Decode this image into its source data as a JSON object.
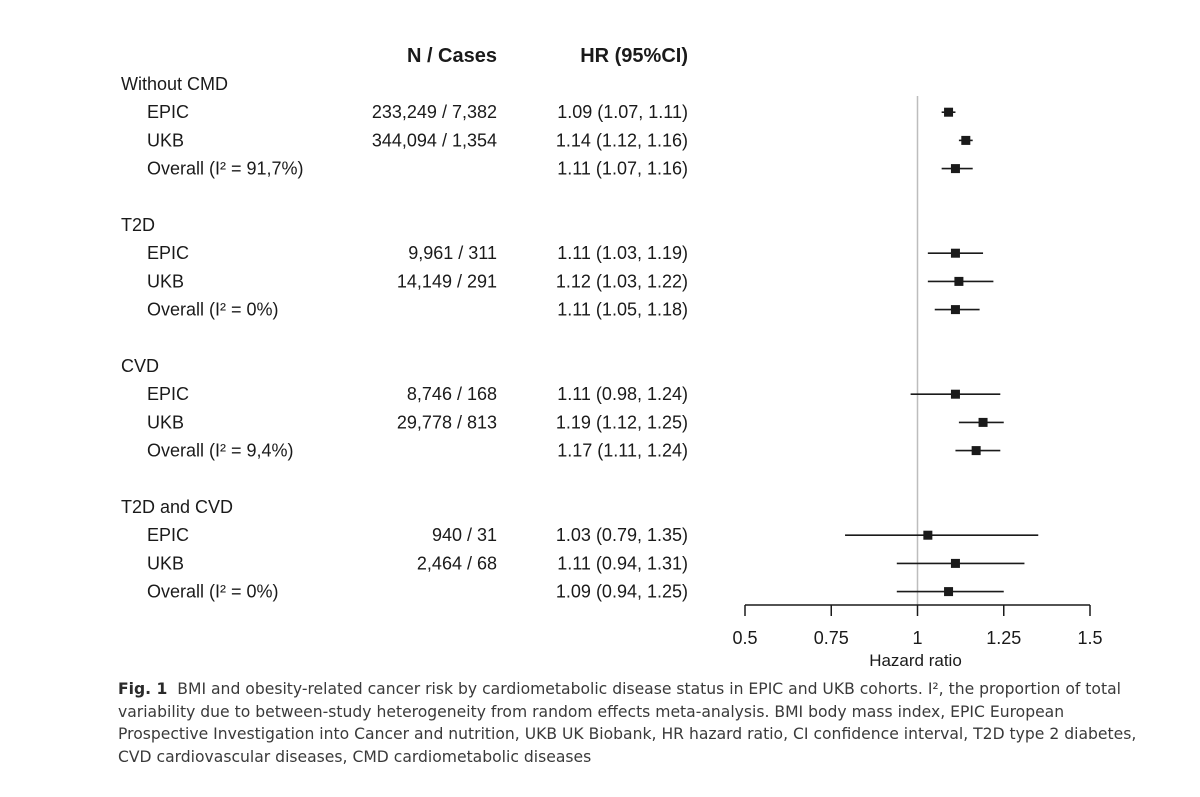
{
  "headers": {
    "n_cases": "N / Cases",
    "hr": "HR (95%CI)"
  },
  "chart_data": {
    "type": "forest",
    "xlabel": "Hazard ratio",
    "xlim": [
      0.5,
      1.5
    ],
    "xticks": [
      0.5,
      0.75,
      1,
      1.25,
      1.5
    ],
    "xtick_labels": [
      "0.5",
      "0.75",
      "1",
      "1.25",
      "1.5"
    ],
    "reference_line": 1,
    "groups": [
      {
        "title": "Without CMD",
        "rows": [
          {
            "label": "EPIC",
            "n_cases": "233,249 / 7,382",
            "hr_text": "1.09 (1.07, 1.11)",
            "hr": 1.09,
            "lo": 1.07,
            "hi": 1.11
          },
          {
            "label": "UKB",
            "n_cases": "344,094 / 1,354",
            "hr_text": "1.14 (1.12, 1.16)",
            "hr": 1.14,
            "lo": 1.12,
            "hi": 1.16
          },
          {
            "label": "Overall (I² = 91,7%)",
            "n_cases": "",
            "hr_text": "1.11 (1.07, 1.16)",
            "hr": 1.11,
            "lo": 1.07,
            "hi": 1.16
          }
        ]
      },
      {
        "title": "T2D",
        "rows": [
          {
            "label": "EPIC",
            "n_cases": "9,961 / 311",
            "hr_text": "1.11 (1.03, 1.19)",
            "hr": 1.11,
            "lo": 1.03,
            "hi": 1.19
          },
          {
            "label": "UKB",
            "n_cases": "14,149 / 291",
            "hr_text": "1.12 (1.03, 1.22)",
            "hr": 1.12,
            "lo": 1.03,
            "hi": 1.22
          },
          {
            "label": "Overall (I² = 0%)",
            "n_cases": "",
            "hr_text": "1.11 (1.05, 1.18)",
            "hr": 1.11,
            "lo": 1.05,
            "hi": 1.18
          }
        ]
      },
      {
        "title": "CVD",
        "rows": [
          {
            "label": "EPIC",
            "n_cases": "8,746 / 168",
            "hr_text": "1.11 (0.98, 1.24)",
            "hr": 1.11,
            "lo": 0.98,
            "hi": 1.24
          },
          {
            "label": "UKB",
            "n_cases": "29,778 / 813",
            "hr_text": "1.19 (1.12, 1.25)",
            "hr": 1.19,
            "lo": 1.12,
            "hi": 1.25
          },
          {
            "label": "Overall (I² = 9,4%)",
            "n_cases": "",
            "hr_text": "1.17 (1.11, 1.24)",
            "hr": 1.17,
            "lo": 1.11,
            "hi": 1.24
          }
        ]
      },
      {
        "title": "T2D and CVD",
        "rows": [
          {
            "label": "EPIC",
            "n_cases": "940 / 31",
            "hr_text": "1.03 (0.79, 1.35)",
            "hr": 1.03,
            "lo": 0.79,
            "hi": 1.35
          },
          {
            "label": "UKB",
            "n_cases": "2,464 / 68",
            "hr_text": "1.11 (0.94, 1.31)",
            "hr": 1.11,
            "lo": 0.94,
            "hi": 1.31
          },
          {
            "label": "Overall (I² = 0%)",
            "n_cases": "",
            "hr_text": "1.09 (0.94, 1.25)",
            "hr": 1.09,
            "lo": 0.94,
            "hi": 1.25
          }
        ]
      }
    ]
  },
  "caption": {
    "label": "Fig. 1",
    "text": "BMI and obesity-related cancer risk by cardiometabolic disease status in EPIC and UKB cohorts. I², the proportion of total variability due to between-study heterogeneity from random effects meta-analysis. BMI body mass index, EPIC European Prospective Investigation into Cancer and nutrition, UKB UK Biobank, HR hazard ratio, CI confidence interval, T2D type 2 diabetes, CVD cardiovascular diseases, CMD cardiometabolic diseases"
  },
  "colors": {
    "ink": "#1a1a1a",
    "reference_line": "#bdbdbd",
    "caption_text": "#3a3a3a"
  }
}
